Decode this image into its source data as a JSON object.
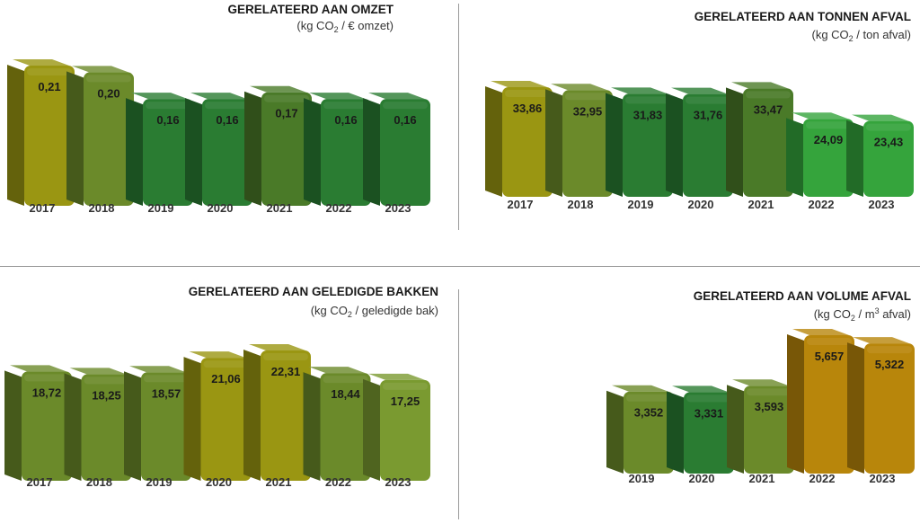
{
  "chart_data": [
    {
      "type": "bar",
      "title": "GERELATEERD AAN OMZET",
      "unit_parts": [
        "(kg CO",
        "2",
        " / € omzet)"
      ],
      "unit_sub": "sub",
      "categories": [
        "2017",
        "2018",
        "2019",
        "2020",
        "2021",
        "2022",
        "2023"
      ],
      "values": [
        0.21,
        0.2,
        0.16,
        0.16,
        0.17,
        0.16,
        0.16
      ],
      "labels": [
        "0,21",
        "0,20",
        "0,16",
        "0,16",
        "0,17",
        "0,16",
        "0,16"
      ],
      "colors": [
        "#9a9612",
        "#6b8a2a",
        "#2a7c32",
        "#2a7c32",
        "#4a7a28",
        "#2a7c32",
        "#2a7c32"
      ]
    },
    {
      "type": "bar",
      "title": "GERELATEERD AAN TONNEN AFVAL",
      "unit_parts": [
        "(kg CO",
        "2",
        " / ton afval)"
      ],
      "unit_sub": "sub",
      "categories": [
        "2017",
        "2018",
        "2019",
        "2020",
        "2021",
        "2022",
        "2023"
      ],
      "values": [
        33.86,
        32.95,
        31.83,
        31.76,
        33.47,
        24.09,
        23.43
      ],
      "labels": [
        "33,86",
        "32,95",
        "31,83",
        "31,76",
        "33,47",
        "24,09",
        "23,43"
      ],
      "colors": [
        "#9a9612",
        "#6b8a2a",
        "#2a7c32",
        "#2a7c32",
        "#4a7a28",
        "#35a43c",
        "#35a43c"
      ]
    },
    {
      "type": "bar",
      "title": "GERELATEERD AAN GELEDIGDE BAKKEN",
      "unit_parts": [
        "(kg CO",
        "2",
        " / geledigde bak)"
      ],
      "unit_sub": "sub",
      "categories": [
        "2017",
        "2018",
        "2019",
        "2020",
        "2021",
        "2022",
        "2023"
      ],
      "values": [
        18.72,
        18.25,
        18.57,
        21.06,
        22.31,
        18.44,
        17.25
      ],
      "labels": [
        "18,72",
        "18,25",
        "18,57",
        "21,06",
        "22,31",
        "18,44",
        "17,25"
      ],
      "colors": [
        "#6b8a2a",
        "#6b8a2a",
        "#6b8a2a",
        "#9a9612",
        "#9a9612",
        "#6b8a2a",
        "#7a9a30"
      ]
    },
    {
      "type": "bar",
      "title": "GERELATEERD AAN VOLUME AFVAL",
      "unit_parts": [
        "(kg CO",
        "2",
        " / m",
        "3",
        " afval)"
      ],
      "unit_sub": "mixed",
      "categories": [
        "2019",
        "2020",
        "2021",
        "2022",
        "2023"
      ],
      "values": [
        3.352,
        3.331,
        3.593,
        5.657,
        5.322
      ],
      "labels": [
        "3,352",
        "3,331",
        "3,593",
        "5,657",
        "5,322"
      ],
      "colors": [
        "#6b8a2a",
        "#2a7c32",
        "#6b8a2a",
        "#b8860b",
        "#b8860b"
      ]
    }
  ]
}
